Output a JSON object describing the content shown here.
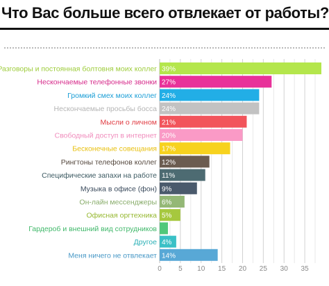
{
  "chart_data": {
    "type": "bar",
    "orientation": "horizontal",
    "title": "Что Вас больше всего отвлекает от работы?",
    "categories": [
      "Разговоры и постоянная болтовня моих коллег",
      "Нескончаемые телефонные звонки",
      "Громкий смех моих коллег",
      "Нескончаемые просьбы босса",
      "Мысли о личном",
      "Свободный доступ в интернет",
      "Бесконечные совещания",
      "Рингтоны телефонов коллег",
      "Специфические запахи на работе",
      "Музыка в офисе (фон)",
      "Он-лайн мессенджеры",
      "Офисная оргтехника",
      "Гардероб и внешний вид сотрудников",
      "Другое",
      "Меня ничего не отвлекает"
    ],
    "values": [
      39,
      27,
      24,
      24,
      21,
      20,
      17,
      12,
      11,
      9,
      6,
      5,
      2,
      4,
      14
    ],
    "value_labels": [
      "39%",
      "27%",
      "24%",
      "24%",
      "21%",
      "20%",
      "17%",
      "12%",
      "11%",
      "9%",
      "6%",
      "5%",
      "",
      "4%",
      "14%"
    ],
    "bar_colors": [
      "#b4e64c",
      "#e8329a",
      "#22aee6",
      "#c2c2c2",
      "#f2545b",
      "#fa9ac6",
      "#f7d21e",
      "#6b5c50",
      "#4d6b72",
      "#4a5a6c",
      "#94b876",
      "#a6c83e",
      "#50c87a",
      "#3ac0c6",
      "#58a8d6"
    ],
    "label_colors": [
      "#9dcc3a",
      "#d62a8a",
      "#1a9ed6",
      "#b5b5b5",
      "#e03c42",
      "#f08cbc",
      "#e8c010",
      "#55483e",
      "#3c5a62",
      "#3a4a5c",
      "#88ac6a",
      "#96b830",
      "#40b86a",
      "#2ab0b6",
      "#4898c6"
    ],
    "xticks": [
      0,
      5,
      10,
      15,
      20,
      25,
      30,
      35
    ],
    "xlim": [
      0,
      39
    ],
    "grid": true
  }
}
